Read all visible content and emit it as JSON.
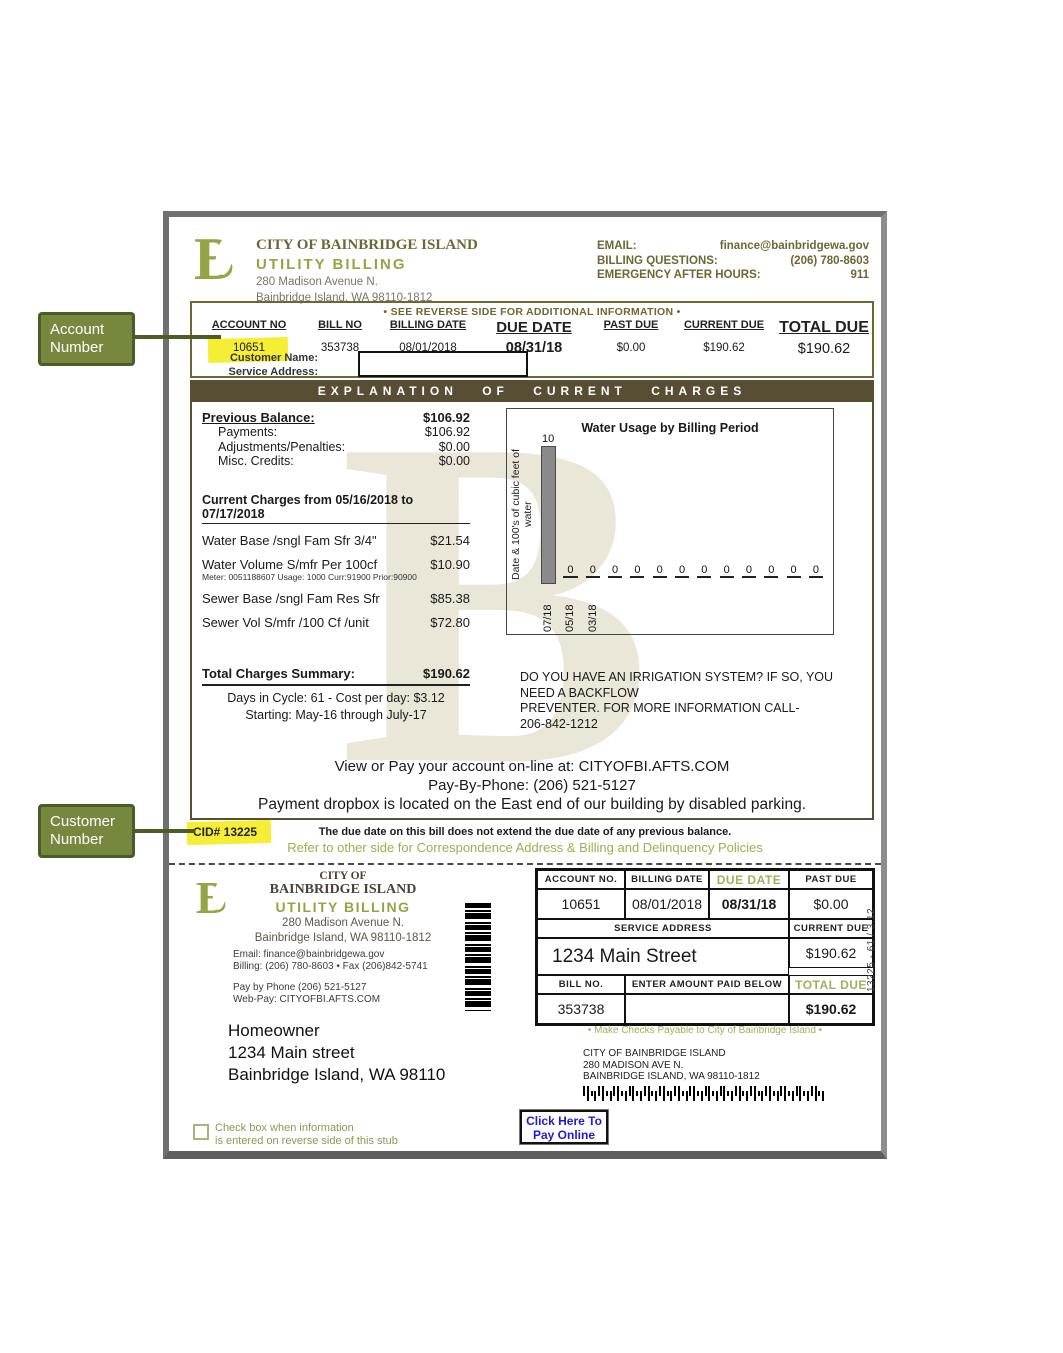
{
  "annotations": {
    "account_label": "Account Number",
    "customer_label": "Customer Number"
  },
  "header": {
    "org_name": "CITY OF BAINBRIDGE ISLAND",
    "dept": "UTILITY BILLING",
    "addr1": "280 Madison Avenue N.",
    "addr2": "Bainbridge Island, WA  98110-1812",
    "email_label": "EMAIL:",
    "email": "finance@bainbridgewa.gov",
    "billing_label": "BILLING QUESTIONS:",
    "billing_phone": "(206) 780-8603",
    "emergency_label": "EMERGENCY AFTER HOURS:",
    "emergency_value": "911"
  },
  "summary": {
    "note": "• SEE REVERSE SIDE FOR ADDITIONAL INFORMATION •",
    "h_account": "ACCOUNT NO",
    "h_bill": "BILL NO",
    "h_billing_date": "BILLING DATE",
    "h_due_date": "DUE DATE",
    "h_past_due": "PAST DUE",
    "h_current_due": "CURRENT DUE",
    "h_total_due": "TOTAL DUE",
    "account": "10651",
    "bill": "353738",
    "billing_date": "08/01/2018",
    "due_date": "08/31/18",
    "past_due": "$0.00",
    "current_due": "$190.62",
    "total_due": "$190.62",
    "customer_name_label": "Customer Name:",
    "service_address_label": "Service Address:"
  },
  "explanation_title": "EXPLANATION OF CURRENT CHARGES",
  "charges": {
    "previous_balance_label": "Previous Balance:",
    "previous_balance": "$106.92",
    "lines": [
      {
        "label": "Payments:",
        "value": "$106.92"
      },
      {
        "label": "Adjustments/Penalties:",
        "value": "$0.00"
      },
      {
        "label": "Misc. Credits:",
        "value": "$0.00"
      }
    ],
    "current_heading": "Current Charges from 05/16/2018 to 07/17/2018",
    "items": [
      {
        "label": "Water Base /sngl Fam Sfr 3/4\"",
        "value": "$21.54"
      },
      {
        "label": "Water Volume S/mfr Per 100cf",
        "value": "$10.90",
        "detail": "Meter: 0051188607  Usage: 1000  Curr:91900  Prior:90900"
      },
      {
        "label": "Sewer Base /sngl Fam Res Sfr",
        "value": "$85.38"
      },
      {
        "label": "Sewer Vol S/mfr /100 Cf /unit",
        "value": "$72.80"
      }
    ],
    "total_label": "Total Charges Summary:",
    "total": "$190.62",
    "cycle_line": "Days in Cycle: 61  - Cost per day: $3.12",
    "starting_line": "Starting: May-16 through July-17"
  },
  "chart_data": {
    "type": "bar",
    "title": "Water Usage by Billing Period",
    "ylabel": "Date &  100's of cubic feet of water",
    "categories": [
      "07/18",
      "05/18",
      "03/18",
      "",
      "",
      "",
      "",
      "",
      "",
      "",
      "",
      "",
      ""
    ],
    "values": [
      10,
      0,
      0,
      0,
      0,
      0,
      0,
      0,
      0,
      0,
      0,
      0,
      0
    ],
    "ylim": [
      0,
      10
    ],
    "grid": "off",
    "legend": "none",
    "bar_color": "#8a8a8a"
  },
  "irrigation": {
    "lines": [
      "DO YOU HAVE AN IRRIGATION SYSTEM? IF SO, YOU",
      "NEED A BACKFLOW",
      "PREVENTER. FOR MORE INFORMATION CALL-",
      "206-842-1212"
    ]
  },
  "pay_info": {
    "lines": [
      "View or Pay your account on-line at:  CITYOFBI.AFTS.COM",
      "Pay-By-Phone: (206) 521-5127",
      "Payment dropbox is located on the East end of our building by disabled parking."
    ]
  },
  "cid": {
    "label": "CID# 13225",
    "due_note": "The due date on this bill does not extend the due date of any previous balance.",
    "refer_note": "Refer to other side for Correspondence Address & Billing and Delinquency Policies"
  },
  "stub": {
    "org_top": "CITY OF",
    "org": "BAINBRIDGE ISLAND",
    "dept": "UTILITY BILLING",
    "addr1": "280 Madison Avenue N.",
    "addr2": "Bainbridge Island, WA  98110-1812",
    "email": "Email: finance@bainbridgewa.gov",
    "billing": "Billing: (206) 780-8603 • Fax (206)842-5741",
    "phone": "Pay by Phone (206) 521-5127",
    "web": "Web-Pay: CITYOFBI.AFTS.COM",
    "table": {
      "h_account": "ACCOUNT NO.",
      "h_billing_date": "BILLING DATE",
      "h_due_date": "DUE DATE",
      "h_past_due": "PAST DUE",
      "account": "10651",
      "billing_date": "08/01/2018",
      "due_date": "08/31/18",
      "past_due": "$0.00",
      "h_service": "SERVICE ADDRESS",
      "h_current": "CURRENT DUE",
      "service": "1234 Main Street",
      "current": "$190.62",
      "h_bill": "BILL NO.",
      "h_enter": "ENTER AMOUNT PAID BELOW",
      "h_total": "TOTAL DUE",
      "bill": "353738",
      "amount_entered": "",
      "total": "$190.62"
    },
    "make_checks": "• Make Checks Payable to City of Bainbridge Island •",
    "side_code": "13225 - 61 / 3.12",
    "mail_to": [
      "Homeowner",
      "1234 Main street",
      "Bainbridge Island, WA 98110"
    ],
    "return_address": [
      "CITY OF BAINBRIDGE ISLAND",
      "280 MADISON AVE N.",
      "BAINBRIDGE ISLAND, WA 98110-1812"
    ],
    "checkbox_lines": [
      "Check box when information",
      "is entered on reverse side of this stub"
    ],
    "pay_button": [
      "Click Here To",
      "Pay Online"
    ]
  },
  "colors": {
    "olive": "#94a545",
    "dark_olive": "#6e6733",
    "bar_brown": "#584e33",
    "highlight_yellow": "#f6ee35",
    "callout_fill": "#76883d",
    "callout_border": "#4d5c27",
    "link_blue": "#1f1dcb"
  }
}
